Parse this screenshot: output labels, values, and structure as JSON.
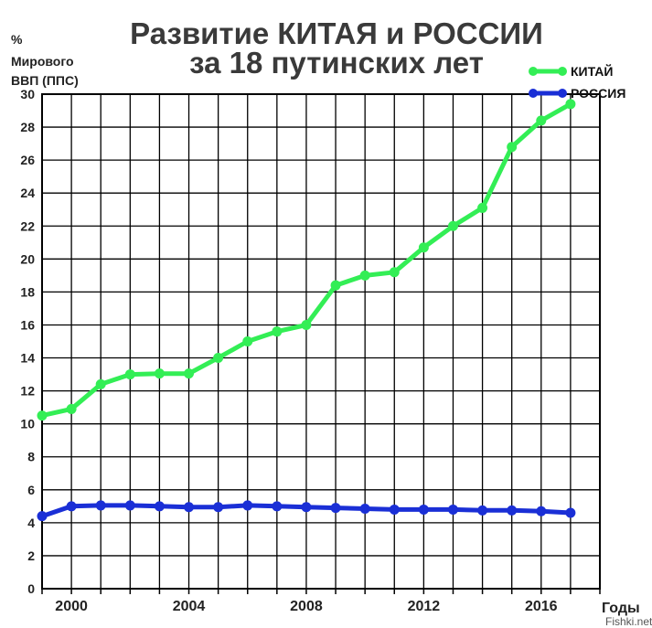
{
  "chart_data": {
    "type": "line",
    "title_line1": "Развитие КИТАЯ и РОССИИ",
    "title_line2": "за 18 путинских лет",
    "ylabel_line1": "%",
    "ylabel_line2": "Мирового",
    "ylabel_line3": "ВВП (ППС)",
    "xlabel": "Годы",
    "x": [
      1999,
      2000,
      2001,
      2002,
      2003,
      2004,
      2005,
      2006,
      2007,
      2008,
      2009,
      2010,
      2011,
      2012,
      2013,
      2014,
      2015,
      2016,
      2017
    ],
    "xlim": [
      1999,
      2018
    ],
    "x_tick_labels": [
      "2000",
      "2004",
      "2008",
      "2012",
      "2016"
    ],
    "x_tick_values": [
      2000,
      2004,
      2008,
      2012,
      2016
    ],
    "ylim": [
      0,
      30
    ],
    "y_ticks": [
      "0",
      "2",
      "4",
      "6",
      "8",
      "10",
      "12",
      "14",
      "16",
      "18",
      "20",
      "22",
      "24",
      "26",
      "28",
      "30"
    ],
    "grid": true,
    "legend_position": "top-right",
    "series": [
      {
        "name": "КИТАЙ",
        "color": "#33ee55",
        "values": [
          10.5,
          10.9,
          12.4,
          13.0,
          13.05,
          13.05,
          14.0,
          15.0,
          15.6,
          16.0,
          18.4,
          19.0,
          19.2,
          20.7,
          22.0,
          23.1,
          26.8,
          28.4,
          29.4
        ]
      },
      {
        "name": "РОССИЯ",
        "color": "#1a2fd6",
        "values": [
          4.4,
          5.0,
          5.05,
          5.05,
          5.0,
          4.95,
          4.95,
          5.05,
          5.0,
          4.95,
          4.9,
          4.85,
          4.8,
          4.8,
          4.8,
          4.75,
          4.75,
          4.7,
          4.6
        ]
      }
    ]
  },
  "watermark": "Fishki.net"
}
